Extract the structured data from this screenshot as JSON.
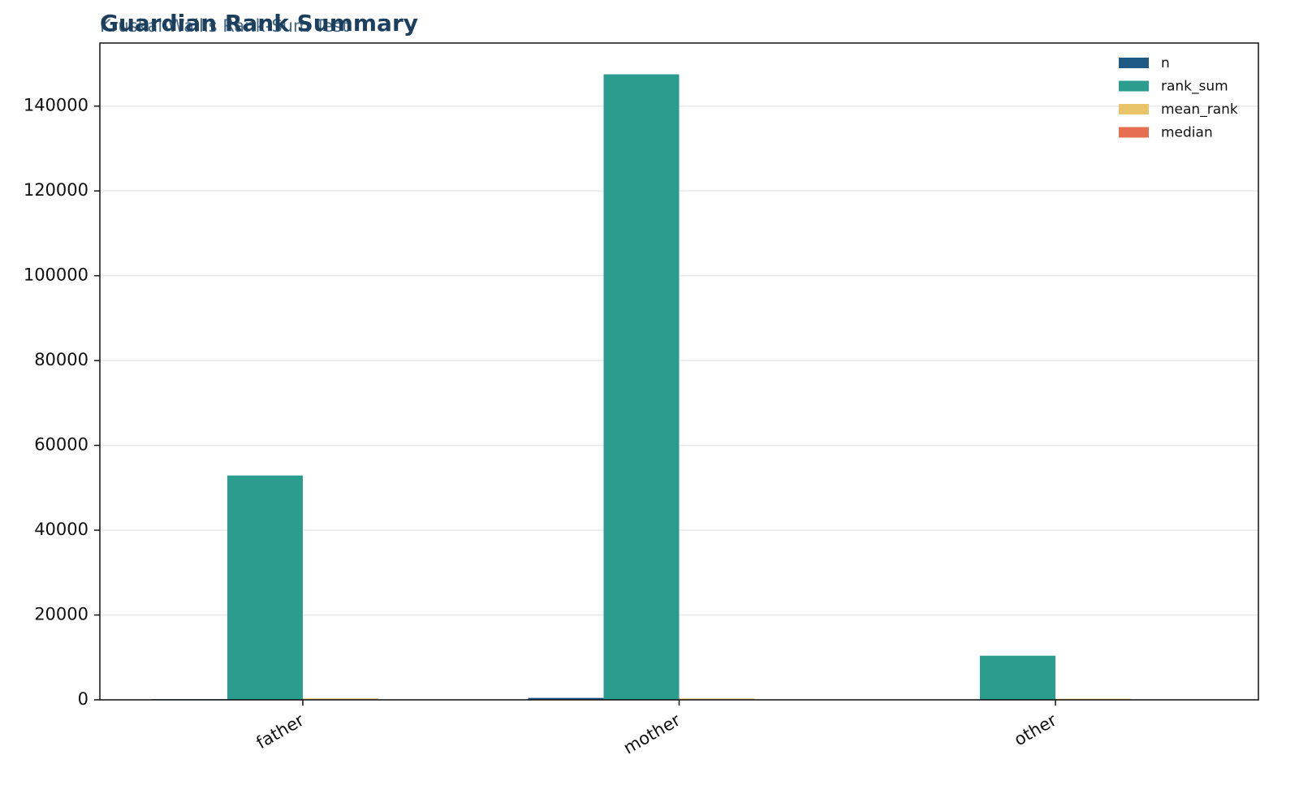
{
  "chart_data": {
    "type": "bar",
    "title": "Guardian Rank Summary",
    "subtitle": "Kruskal-Wallis Rank-Sum Test",
    "categories": [
      "father",
      "mother",
      "other"
    ],
    "series": [
      {
        "name": "n",
        "color": "#1f5a85",
        "values": [
          153,
          455,
          41
        ]
      },
      {
        "name": "rank_sum",
        "color": "#2a9d8f",
        "values": [
          52900,
          147500,
          10400
        ]
      },
      {
        "name": "mean_rank",
        "color": "#e9c46a",
        "values": [
          346,
          324,
          254
        ]
      },
      {
        "name": "median",
        "color": "#e76f51",
        "values": [
          12,
          12,
          11
        ]
      }
    ],
    "ylim": [
      0,
      154875
    ],
    "yticks": [
      0,
      20000,
      40000,
      60000,
      80000,
      100000,
      120000,
      140000
    ],
    "grid": true,
    "legend": "upper right"
  }
}
